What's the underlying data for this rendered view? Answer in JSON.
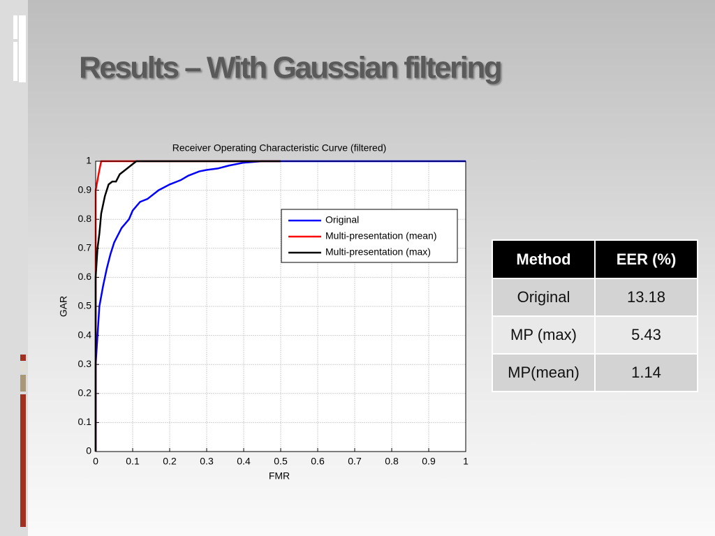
{
  "slide_title": "Results – With Gaussian filtering",
  "chart_data": {
    "type": "line",
    "title": "Receiver Operating Characteristic Curve (filtered)",
    "x_label": "FMR",
    "y_label": "GAR",
    "xlim": [
      0,
      1
    ],
    "ylim": [
      0,
      1
    ],
    "xticks": [
      0,
      0.1,
      0.2,
      0.3,
      0.4,
      0.5,
      0.6,
      0.7,
      0.8,
      0.9,
      1
    ],
    "yticks": [
      0,
      0.1,
      0.2,
      0.3,
      0.4,
      0.5,
      0.6,
      0.7,
      0.8,
      0.9,
      1
    ],
    "grid": true,
    "legend_position": "upper right",
    "series": [
      {
        "name": "Original",
        "color": "#0000ff",
        "x": [
          0,
          0,
          0.005,
          0.01,
          0.02,
          0.03,
          0.04,
          0.05,
          0.07,
          0.09,
          0.1,
          0.12,
          0.14,
          0.17,
          0.2,
          0.23,
          0.25,
          0.28,
          0.3,
          0.33,
          0.36,
          0.4,
          0.45,
          1
        ],
        "values": [
          0,
          0.3,
          0.4,
          0.5,
          0.57,
          0.63,
          0.68,
          0.72,
          0.77,
          0.8,
          0.83,
          0.86,
          0.87,
          0.9,
          0.92,
          0.935,
          0.95,
          0.965,
          0.97,
          0.975,
          0.985,
          0.995,
          1,
          1
        ]
      },
      {
        "name": "Multi-presentation (mean)",
        "color": "#ff0000",
        "x": [
          0,
          0,
          0.01,
          0.015,
          0.5
        ],
        "values": [
          0,
          0.9,
          0.97,
          1,
          1
        ]
      },
      {
        "name": "Multi-presentation (max)",
        "color": "#000000",
        "x": [
          0,
          0,
          0.005,
          0.01,
          0.015,
          0.025,
          0.035,
          0.045,
          0.055,
          0.065,
          0.08,
          0.1,
          0.11,
          0.5
        ],
        "values": [
          0,
          0.6,
          0.7,
          0.75,
          0.82,
          0.88,
          0.92,
          0.93,
          0.93,
          0.955,
          0.97,
          0.99,
          1,
          1
        ]
      }
    ]
  },
  "table": {
    "header": [
      "Method",
      "EER (%)"
    ],
    "rows": [
      [
        "Original",
        "13.18"
      ],
      [
        "MP (max)",
        "5.43"
      ],
      [
        "MP(mean)",
        "1.14"
      ]
    ]
  }
}
